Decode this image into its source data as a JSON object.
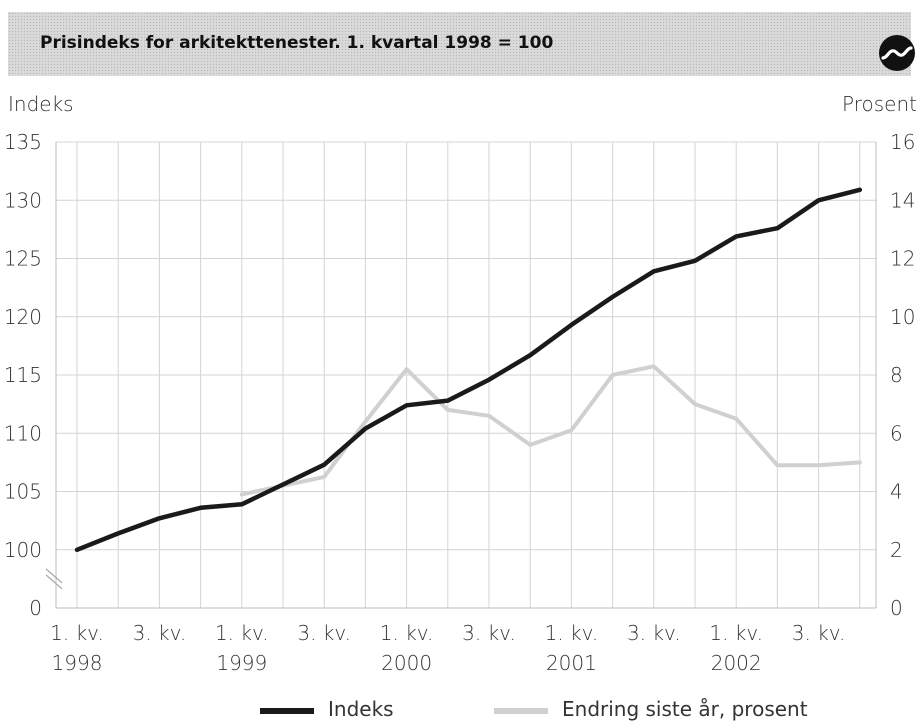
{
  "title": "Prisindeks for arkitekttenester. 1. kvartal 1998 = 100",
  "logo_icon": "ssb-logo-icon",
  "colors": {
    "indeks": "#1a1a1a",
    "endring": "#d0d0d0",
    "grid": "#d4d4d4",
    "title_bg": "#d9d9d9"
  },
  "chart_data": {
    "type": "line",
    "ylabel_left": "Indeks",
    "ylabel_right": "Prosent",
    "left_ticks": [
      "135",
      "130",
      "125",
      "120",
      "115",
      "110",
      "105",
      "100",
      "0"
    ],
    "right_ticks": [
      "16",
      "14",
      "12",
      "10",
      "8",
      "6",
      "4",
      "2",
      "0"
    ],
    "left_axis_break": true,
    "ylim_left": [
      100,
      135
    ],
    "ylim_right": [
      2,
      16
    ],
    "x_tick_labels": [
      {
        "q": "1. kv.",
        "year": "1998"
      },
      {
        "q": "3. kv.",
        "year": ""
      },
      {
        "q": "1. kv.",
        "year": "1999"
      },
      {
        "q": "3. kv.",
        "year": ""
      },
      {
        "q": "1. kv.",
        "year": "2000"
      },
      {
        "q": "3. kv.",
        "year": ""
      },
      {
        "q": "1. kv.",
        "year": "2001"
      },
      {
        "q": "3. kv.",
        "year": ""
      },
      {
        "q": "1. kv.",
        "year": "2002"
      },
      {
        "q": "3. kv.",
        "year": ""
      }
    ],
    "quarters": [
      "1998 K1",
      "1998 K2",
      "1998 K3",
      "1998 K4",
      "1999 K1",
      "1999 K2",
      "1999 K3",
      "1999 K4",
      "2000 K1",
      "2000 K2",
      "2000 K3",
      "2000 K4",
      "2001 K1",
      "2001 K2",
      "2001 K3",
      "2001 K4",
      "2002 K1",
      "2002 K2",
      "2002 K3",
      "2002 K4"
    ],
    "grid": true,
    "legend_position": "bottom",
    "series": [
      {
        "name": "Indeks",
        "axis": "left",
        "values": [
          100.0,
          101.4,
          102.7,
          103.6,
          103.9,
          105.6,
          107.3,
          110.4,
          112.4,
          112.8,
          114.6,
          116.7,
          119.3,
          121.7,
          123.9,
          124.8,
          126.9,
          127.6,
          130.0,
          130.9
        ]
      },
      {
        "name": "Endring siste år, prosent",
        "axis": "right",
        "values": [
          null,
          null,
          null,
          null,
          3.9,
          4.2,
          4.5,
          6.4,
          8.2,
          6.8,
          6.6,
          5.6,
          6.1,
          8.0,
          8.3,
          7.0,
          6.5,
          4.9,
          4.9,
          5.0
        ]
      }
    ]
  }
}
